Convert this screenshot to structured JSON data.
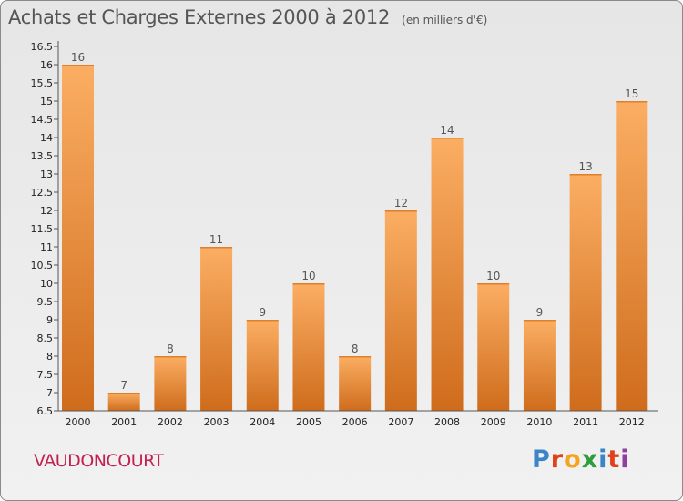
{
  "header": {
    "title": "Achats et Charges Externes 2000 à 2012",
    "unit": "(en milliers d'€)"
  },
  "footer": {
    "town": "VAUDONCOURT",
    "logo_letters": [
      "P",
      "r",
      "o",
      "x",
      "i",
      "t",
      "i"
    ]
  },
  "colors": {
    "bar_light": "#fbae63",
    "bar_dark": "#cf6c1c",
    "axis": "#555555",
    "town": "#c3214f",
    "logo": [
      "#3b84c8",
      "#e0411b",
      "#f2a51d",
      "#2e9e3c",
      "#3b84c8",
      "#e0411b",
      "#8e3fa0"
    ]
  },
  "chart_data": {
    "type": "bar",
    "title": "Achats et Charges Externes 2000 à 2012",
    "categories": [
      "2000",
      "2001",
      "2002",
      "2003",
      "2004",
      "2005",
      "2006",
      "2007",
      "2008",
      "2009",
      "2010",
      "2011",
      "2012"
    ],
    "values": [
      16,
      7,
      8,
      11,
      9,
      10,
      8,
      12,
      14,
      10,
      9,
      13,
      15
    ],
    "ylim": [
      6.5,
      16.5
    ],
    "yticks": [
      "6.5",
      "7",
      "7.5",
      "8",
      "8.5",
      "9",
      "9.5",
      "10",
      "10.5",
      "11",
      "11.5",
      "12",
      "12.5",
      "13",
      "13.5",
      "14",
      "14.5",
      "15",
      "15.5",
      "16",
      "16.5"
    ],
    "xlabel": "",
    "ylabel": "",
    "grid": false,
    "legend": "none"
  }
}
